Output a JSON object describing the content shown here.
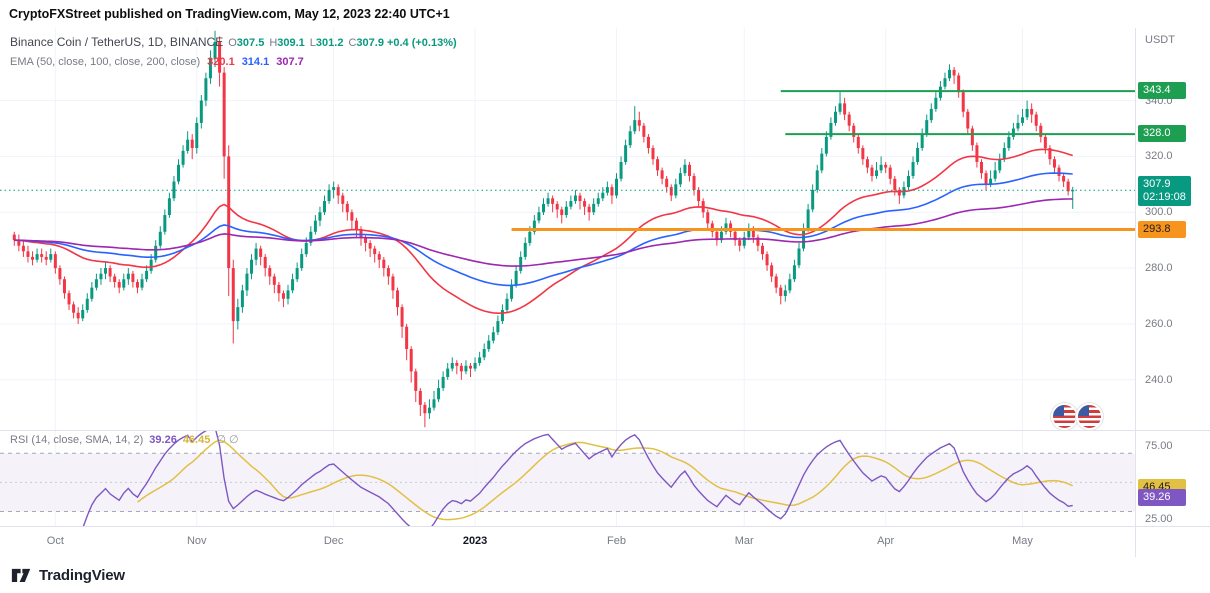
{
  "watermark": {
    "text": "CryptoFXStreet published on TradingView.com, May 12, 2023 22:40 UTC+1"
  },
  "header": {
    "symbol": "Binance Coin / TetherUS, 1D, BINANCE",
    "o_label": "O",
    "o_value": "307.5",
    "h_label": "H",
    "h_value": "309.1",
    "l_label": "L",
    "l_value": "301.2",
    "c_label": "C",
    "c_value": "307.9",
    "change": "+0.4 (+0.13%)",
    "ema_title": "EMA (50, close, 100, close, 200, close)",
    "ema50": "320.1",
    "ema100": "314.1",
    "ema200": "307.7"
  },
  "axis": {
    "currency": "USDT",
    "price_ticks": [
      "340.0",
      "320.0",
      "300.0",
      "280.0",
      "260.0",
      "240.0"
    ],
    "rsi_ticks": [
      "75.00",
      "25.00"
    ]
  },
  "badges": {
    "resistance_1": "343.4",
    "resistance_2": "328.0",
    "last_price": "307.9",
    "countdown": "02:19:08",
    "support": "293.8",
    "rsi_ma": "46.45",
    "rsi": "39.26"
  },
  "rsi_header": {
    "title": "RSI (14, close, SMA, 14, 2)",
    "value": "39.26",
    "ma_value": "46.45",
    "empty": "∅ ∅"
  },
  "footer": {
    "brand": "TradingView"
  },
  "chart_data": {
    "type": "candlestick",
    "symbol": "BNBUSDT",
    "exchange": "BINANCE",
    "interval": "1D",
    "title": "Binance Coin / TetherUS, 1D, BINANCE",
    "quote_currency": "USDT",
    "date_range": "2022-09-22 to 2023-05-12",
    "price_axis": {
      "min": 222,
      "max": 366,
      "ticks": [
        340,
        320,
        300,
        280,
        260,
        240
      ]
    },
    "colors": {
      "up": "#089981",
      "down": "#f23645",
      "grid": "#f0f3fa"
    },
    "months": [
      {
        "label": "Oct",
        "index": 9,
        "major": false
      },
      {
        "label": "Nov",
        "index": 40,
        "major": false
      },
      {
        "label": "Dec",
        "index": 70,
        "major": false
      },
      {
        "label": "2023",
        "index": 101,
        "major": true
      },
      {
        "label": "Feb",
        "index": 132,
        "major": false
      },
      {
        "label": "Mar",
        "index": 160,
        "major": false
      },
      {
        "label": "Apr",
        "index": 191,
        "major": false
      },
      {
        "label": "May",
        "index": 221,
        "major": false
      }
    ],
    "candles": [
      [
        292,
        293,
        288,
        290
      ],
      [
        290,
        292,
        286,
        288
      ],
      [
        288,
        290,
        284,
        286
      ],
      [
        286,
        288,
        282,
        284
      ],
      [
        284,
        286,
        281,
        283
      ],
      [
        283,
        287,
        282,
        285
      ],
      [
        285,
        287,
        282,
        284
      ],
      [
        284,
        286,
        281,
        283
      ],
      [
        283,
        287,
        282,
        285
      ],
      [
        285,
        286,
        278,
        280
      ],
      [
        280,
        281,
        274,
        276
      ],
      [
        276,
        277,
        269,
        271
      ],
      [
        271,
        272,
        265,
        267
      ],
      [
        267,
        268,
        262,
        264
      ],
      [
        264,
        266,
        260,
        262
      ],
      [
        262,
        267,
        261,
        265
      ],
      [
        265,
        271,
        264,
        269
      ],
      [
        269,
        275,
        268,
        273
      ],
      [
        273,
        278,
        272,
        276
      ],
      [
        276,
        280,
        274,
        278
      ],
      [
        278,
        282,
        276,
        280
      ],
      [
        280,
        281,
        275,
        277
      ],
      [
        277,
        278,
        273,
        275
      ],
      [
        275,
        276,
        271,
        273
      ],
      [
        273,
        278,
        272,
        276
      ],
      [
        276,
        280,
        274,
        278
      ],
      [
        278,
        279,
        273,
        275
      ],
      [
        275,
        276,
        271,
        273
      ],
      [
        273,
        278,
        272,
        276
      ],
      [
        276,
        281,
        275,
        279
      ],
      [
        279,
        285,
        278,
        283
      ],
      [
        283,
        290,
        282,
        288
      ],
      [
        288,
        295,
        287,
        293
      ],
      [
        293,
        301,
        292,
        299
      ],
      [
        299,
        307,
        298,
        305
      ],
      [
        305,
        313,
        304,
        311
      ],
      [
        311,
        319,
        310,
        317
      ],
      [
        317,
        324,
        316,
        322
      ],
      [
        322,
        329,
        321,
        326
      ],
      [
        326,
        328,
        319,
        323
      ],
      [
        323,
        334,
        321,
        332
      ],
      [
        332,
        342,
        330,
        340
      ],
      [
        340,
        350,
        338,
        348
      ],
      [
        348,
        358,
        346,
        355
      ],
      [
        355,
        365,
        352,
        361
      ],
      [
        361,
        363,
        345,
        350
      ],
      [
        350,
        352,
        312,
        320
      ],
      [
        320,
        324,
        270,
        280
      ],
      [
        280,
        283,
        253,
        261
      ],
      [
        261,
        269,
        258,
        266
      ],
      [
        266,
        274,
        264,
        272
      ],
      [
        272,
        280,
        270,
        278
      ],
      [
        278,
        285,
        276,
        283
      ],
      [
        283,
        289,
        281,
        287
      ],
      [
        287,
        288,
        281,
        284
      ],
      [
        284,
        285,
        277,
        280
      ],
      [
        280,
        281,
        274,
        277
      ],
      [
        277,
        278,
        271,
        274
      ],
      [
        274,
        275,
        268,
        271
      ],
      [
        271,
        272,
        266,
        269
      ],
      [
        269,
        274,
        267,
        272
      ],
      [
        272,
        278,
        271,
        276
      ],
      [
        276,
        282,
        275,
        280
      ],
      [
        280,
        287,
        279,
        285
      ],
      [
        285,
        291,
        284,
        289
      ],
      [
        289,
        295,
        288,
        293
      ],
      [
        293,
        299,
        292,
        297
      ],
      [
        297,
        302,
        295,
        300
      ],
      [
        300,
        306,
        299,
        304
      ],
      [
        304,
        310,
        303,
        308
      ],
      [
        308,
        311,
        305,
        309
      ],
      [
        309,
        310,
        303,
        306
      ],
      [
        306,
        307,
        300,
        303
      ],
      [
        303,
        304,
        297,
        300
      ],
      [
        300,
        301,
        294,
        297
      ],
      [
        297,
        298,
        291,
        294
      ],
      [
        294,
        295,
        288,
        291
      ],
      [
        291,
        292,
        286,
        289
      ],
      [
        289,
        290,
        284,
        287
      ],
      [
        287,
        288,
        282,
        285
      ],
      [
        285,
        286,
        280,
        283
      ],
      [
        283,
        284,
        277,
        280
      ],
      [
        280,
        281,
        274,
        277
      ],
      [
        277,
        278,
        269,
        272
      ],
      [
        272,
        273,
        263,
        266
      ],
      [
        266,
        267,
        255,
        259
      ],
      [
        259,
        260,
        247,
        251
      ],
      [
        251,
        252,
        239,
        243
      ],
      [
        243,
        244,
        232,
        236
      ],
      [
        236,
        237,
        227,
        231
      ],
      [
        231,
        232,
        223,
        228
      ],
      [
        228,
        233,
        226,
        230
      ],
      [
        230,
        236,
        229,
        233
      ],
      [
        233,
        240,
        232,
        237
      ],
      [
        237,
        243,
        236,
        241
      ],
      [
        241,
        246,
        240,
        244
      ],
      [
        244,
        248,
        243,
        246
      ],
      [
        246,
        247,
        242,
        245
      ],
      [
        245,
        246,
        240,
        243
      ],
      [
        243,
        247,
        242,
        245
      ],
      [
        245,
        246,
        241,
        244
      ],
      [
        244,
        248,
        243,
        246
      ],
      [
        246,
        250,
        245,
        248
      ],
      [
        248,
        253,
        247,
        251
      ],
      [
        251,
        256,
        250,
        254
      ],
      [
        254,
        259,
        253,
        257
      ],
      [
        257,
        263,
        256,
        261
      ],
      [
        261,
        267,
        260,
        265
      ],
      [
        265,
        271,
        264,
        269
      ],
      [
        269,
        276,
        268,
        274
      ],
      [
        274,
        281,
        273,
        279
      ],
      [
        279,
        286,
        278,
        284
      ],
      [
        284,
        291,
        283,
        289
      ],
      [
        289,
        295,
        288,
        293
      ],
      [
        293,
        299,
        292,
        297
      ],
      [
        297,
        302,
        296,
        300
      ],
      [
        300,
        305,
        299,
        303
      ],
      [
        303,
        307,
        302,
        305
      ],
      [
        305,
        306,
        300,
        303
      ],
      [
        303,
        304,
        298,
        301
      ],
      [
        301,
        302,
        296,
        299
      ],
      [
        299,
        304,
        298,
        302
      ],
      [
        302,
        306,
        301,
        304
      ],
      [
        304,
        308,
        303,
        306
      ],
      [
        306,
        307,
        301,
        304
      ],
      [
        304,
        305,
        299,
        302
      ],
      [
        302,
        303,
        297,
        300
      ],
      [
        300,
        305,
        299,
        303
      ],
      [
        303,
        307,
        302,
        305
      ],
      [
        305,
        309,
        304,
        307
      ],
      [
        307,
        311,
        306,
        309
      ],
      [
        309,
        310,
        303,
        306
      ],
      [
        306,
        314,
        305,
        312
      ],
      [
        312,
        320,
        311,
        318
      ],
      [
        318,
        326,
        317,
        324
      ],
      [
        324,
        331,
        323,
        329
      ],
      [
        329,
        338,
        328,
        333
      ],
      [
        333,
        336,
        329,
        331
      ],
      [
        331,
        332,
        325,
        327
      ],
      [
        327,
        328,
        321,
        323
      ],
      [
        323,
        324,
        317,
        319
      ],
      [
        319,
        320,
        313,
        315
      ],
      [
        315,
        316,
        310,
        312
      ],
      [
        312,
        313,
        307,
        309
      ],
      [
        309,
        310,
        304,
        306
      ],
      [
        306,
        312,
        305,
        310
      ],
      [
        310,
        316,
        309,
        314
      ],
      [
        314,
        319,
        313,
        317
      ],
      [
        317,
        318,
        311,
        313
      ],
      [
        313,
        314,
        306,
        308
      ],
      [
        308,
        309,
        302,
        304
      ],
      [
        304,
        305,
        298,
        300
      ],
      [
        300,
        301,
        294,
        296
      ],
      [
        296,
        297,
        291,
        293
      ],
      [
        293,
        294,
        288,
        290
      ],
      [
        290,
        295,
        289,
        293
      ],
      [
        293,
        298,
        292,
        296
      ],
      [
        296,
        297,
        291,
        293
      ],
      [
        293,
        294,
        288,
        290
      ],
      [
        290,
        291,
        286,
        288
      ],
      [
        288,
        293,
        287,
        291
      ],
      [
        291,
        296,
        290,
        294
      ],
      [
        294,
        295,
        289,
        291
      ],
      [
        291,
        292,
        286,
        288
      ],
      [
        288,
        289,
        283,
        285
      ],
      [
        285,
        286,
        279,
        281
      ],
      [
        281,
        282,
        275,
        277
      ],
      [
        277,
        278,
        271,
        273
      ],
      [
        273,
        274,
        267,
        270
      ],
      [
        270,
        274,
        268,
        272
      ],
      [
        272,
        278,
        271,
        276
      ],
      [
        276,
        283,
        275,
        281
      ],
      [
        281,
        289,
        280,
        287
      ],
      [
        287,
        296,
        286,
        294
      ],
      [
        294,
        303,
        293,
        301
      ],
      [
        301,
        310,
        300,
        308
      ],
      [
        308,
        317,
        307,
        315
      ],
      [
        315,
        323,
        314,
        321
      ],
      [
        321,
        329,
        320,
        327
      ],
      [
        327,
        334,
        326,
        332
      ],
      [
        332,
        338,
        331,
        336
      ],
      [
        336,
        343,
        335,
        339
      ],
      [
        339,
        341,
        333,
        335
      ],
      [
        335,
        336,
        329,
        331
      ],
      [
        331,
        332,
        325,
        327
      ],
      [
        327,
        328,
        321,
        323
      ],
      [
        323,
        324,
        317,
        319
      ],
      [
        319,
        320,
        314,
        316
      ],
      [
        316,
        317,
        311,
        313
      ],
      [
        313,
        318,
        312,
        315
      ],
      [
        315,
        320,
        314,
        317
      ],
      [
        317,
        318,
        314,
        316
      ],
      [
        316,
        317,
        310,
        312
      ],
      [
        312,
        313,
        306,
        308
      ],
      [
        308,
        309,
        303,
        306
      ],
      [
        306,
        311,
        305,
        309
      ],
      [
        309,
        315,
        308,
        313
      ],
      [
        313,
        320,
        312,
        318
      ],
      [
        318,
        325,
        317,
        323
      ],
      [
        323,
        330,
        322,
        328
      ],
      [
        328,
        335,
        327,
        333
      ],
      [
        333,
        339,
        332,
        337
      ],
      [
        337,
        343,
        336,
        341
      ],
      [
        341,
        347,
        340,
        345
      ],
      [
        345,
        350,
        344,
        348
      ],
      [
        348,
        353,
        347,
        351
      ],
      [
        351,
        352,
        346,
        349
      ],
      [
        349,
        350,
        341,
        343
      ],
      [
        343,
        344,
        334,
        336
      ],
      [
        336,
        337,
        328,
        330
      ],
      [
        330,
        331,
        322,
        324
      ],
      [
        324,
        325,
        316,
        318
      ],
      [
        318,
        319,
        312,
        314
      ],
      [
        314,
        315,
        308,
        310
      ],
      [
        310,
        315,
        309,
        312
      ],
      [
        312,
        318,
        311,
        315
      ],
      [
        315,
        321,
        314,
        319
      ],
      [
        319,
        325,
        318,
        323
      ],
      [
        323,
        329,
        322,
        327
      ],
      [
        327,
        332,
        326,
        330
      ],
      [
        330,
        335,
        329,
        332
      ],
      [
        332,
        337,
        331,
        334
      ],
      [
        334,
        340,
        333,
        337
      ],
      [
        337,
        339,
        332,
        335
      ],
      [
        335,
        336,
        329,
        331
      ],
      [
        331,
        332,
        325,
        327
      ],
      [
        327,
        328,
        321,
        323
      ],
      [
        323,
        324,
        317,
        319
      ],
      [
        319,
        320,
        314,
        316
      ],
      [
        316,
        317,
        311,
        313
      ],
      [
        313,
        314,
        309,
        311
      ],
      [
        311,
        312,
        306,
        307.5
      ],
      [
        307.5,
        309.1,
        301.2,
        307.9
      ]
    ],
    "emas": [
      {
        "period": 50,
        "color": "#f23645",
        "last_value": 320.1
      },
      {
        "period": 100,
        "color": "#2962ff",
        "last_value": 314.1
      },
      {
        "period": 200,
        "color": "#9c27b0",
        "last_value": 307.7
      }
    ],
    "levels": [
      {
        "price": 343.4,
        "label": "343.4",
        "color": "#1e9e50",
        "width": 2,
        "start_index": 168
      },
      {
        "price": 328.0,
        "label": "328.0",
        "color": "#1e9e50",
        "width": 2,
        "start_index": 169
      },
      {
        "price": 293.8,
        "label": "293.8",
        "color": "#f7941e",
        "width": 3,
        "start_index": 109
      },
      {
        "price": 307.9,
        "label": "307.9",
        "color": "#089981",
        "width": 1,
        "style": "dotted",
        "start_index": 0
      }
    ],
    "last": {
      "open": 307.5,
      "high": 309.1,
      "low": 301.2,
      "close": 307.9,
      "change": 0.4,
      "change_pct": 0.13,
      "countdown": "02:19:08"
    },
    "rsi": {
      "period": 14,
      "smoothing": "SMA",
      "smoothing_period": 14,
      "last_value": 39.26,
      "last_ma": 46.45,
      "min": 20,
      "max": 86,
      "band": [
        30,
        70
      ],
      "mid": 50,
      "tick_values": [
        75,
        25
      ],
      "colors": {
        "rsi": "#7e57c2",
        "ma": "#e2c043",
        "band_fill": "rgba(126,87,194,0.08)",
        "band_line": "#a5a8b6"
      }
    }
  }
}
